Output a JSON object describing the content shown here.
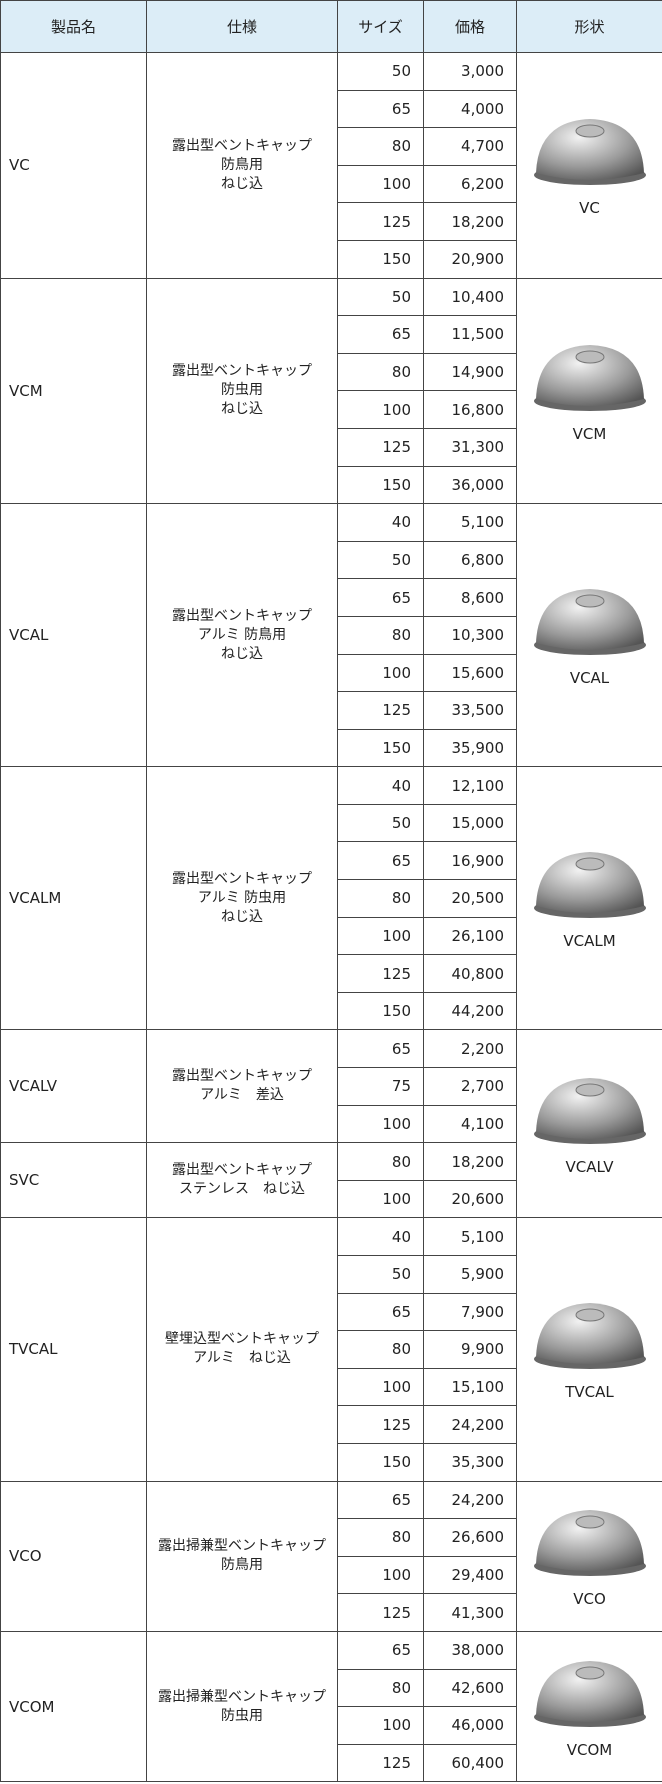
{
  "header": [
    "製品名",
    "仕様",
    "サイズ",
    "価格",
    "形状"
  ],
  "products": [
    {
      "name": "VC",
      "spec": [
        "露出型ベントキャップ",
        "防鳥用",
        "ねじ込"
      ],
      "shape": "VC",
      "rows": [
        [
          "50",
          "3,000"
        ],
        [
          "65",
          "4,000"
        ],
        [
          "80",
          "4,700"
        ],
        [
          "100",
          "6,200"
        ],
        [
          "125",
          "18,200"
        ],
        [
          "150",
          "20,900"
        ]
      ]
    },
    {
      "name": "VCM",
      "spec": [
        "露出型ベントキャップ",
        "防虫用",
        "ねじ込"
      ],
      "shape": "VCM",
      "rows": [
        [
          "50",
          "10,400"
        ],
        [
          "65",
          "11,500"
        ],
        [
          "80",
          "14,900"
        ],
        [
          "100",
          "16,800"
        ],
        [
          "125",
          "31,300"
        ],
        [
          "150",
          "36,000"
        ]
      ]
    },
    {
      "name": "VCAL",
      "spec": [
        "露出型ベントキャップ",
        "アルミ 防鳥用",
        "ねじ込"
      ],
      "shape": "VCAL",
      "rows": [
        [
          "40",
          "5,100"
        ],
        [
          "50",
          "6,800"
        ],
        [
          "65",
          "8,600"
        ],
        [
          "80",
          "10,300"
        ],
        [
          "100",
          "15,600"
        ],
        [
          "125",
          "33,500"
        ],
        [
          "150",
          "35,900"
        ]
      ]
    },
    {
      "name": "VCALM",
      "spec": [
        "露出型ベントキャップ",
        "アルミ 防虫用",
        "ねじ込"
      ],
      "shape": "VCALM",
      "rows": [
        [
          "40",
          "12,100"
        ],
        [
          "50",
          "15,000"
        ],
        [
          "65",
          "16,900"
        ],
        [
          "80",
          "20,500"
        ],
        [
          "100",
          "26,100"
        ],
        [
          "125",
          "40,800"
        ],
        [
          "150",
          "44,200"
        ]
      ]
    },
    {
      "name": "VCALV",
      "spec": [
        "露出型ベントキャップ",
        "アルミ　差込"
      ],
      "shape": "VCALV",
      "rows": [
        [
          "65",
          "2,200"
        ],
        [
          "75",
          "2,700"
        ],
        [
          "100",
          "4,100"
        ]
      ]
    },
    {
      "name": "SVC",
      "spec": [
        "露出型ベントキャップ",
        "ステンレス　ねじ込"
      ],
      "shape": null,
      "rows": [
        [
          "80",
          "18,200"
        ],
        [
          "100",
          "20,600"
        ]
      ]
    },
    {
      "name": "TVCAL",
      "spec": [
        "壁埋込型ベントキャップ",
        "アルミ　ねじ込"
      ],
      "shape": "TVCAL",
      "rows": [
        [
          "40",
          "5,100"
        ],
        [
          "50",
          "5,900"
        ],
        [
          "65",
          "7,900"
        ],
        [
          "80",
          "9,900"
        ],
        [
          "100",
          "15,100"
        ],
        [
          "125",
          "24,200"
        ],
        [
          "150",
          "35,300"
        ]
      ]
    },
    {
      "name": "VCO",
      "spec": [
        "露出掃兼型ベントキャップ",
        "防鳥用"
      ],
      "shape": "VCO",
      "rows": [
        [
          "65",
          "24,200"
        ],
        [
          "80",
          "26,600"
        ],
        [
          "100",
          "29,400"
        ],
        [
          "125",
          "41,300"
        ]
      ]
    },
    {
      "name": "VCOM",
      "spec": [
        "露出掃兼型ベントキャップ",
        "防虫用"
      ],
      "shape": "VCOM",
      "rows": [
        [
          "65",
          "38,000"
        ],
        [
          "80",
          "42,600"
        ],
        [
          "100",
          "46,000"
        ],
        [
          "125",
          "60,400"
        ]
      ]
    }
  ]
}
